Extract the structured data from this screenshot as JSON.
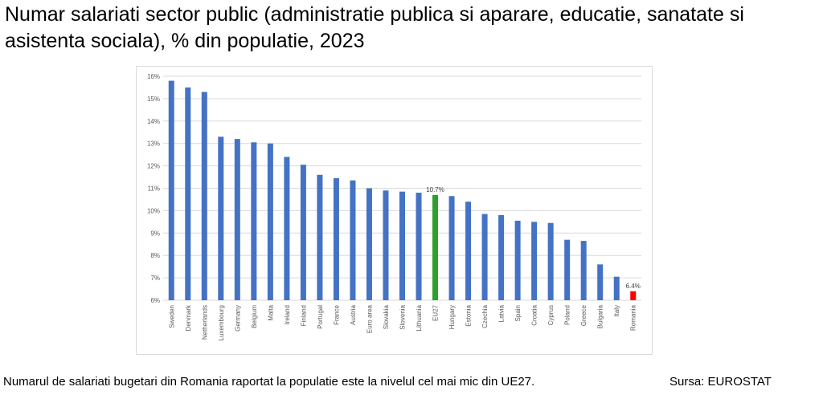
{
  "title": "Numar salariati sector public (administratie publica si aparare, educatie, sanatate si asistenta sociala), % din populatie, 2023",
  "footer": {
    "note": "Numarul de salariati bugetari din Romania raportat la populatie este la nivelul cel mai mic din UE27.",
    "source": "Sursa: EUROSTAT"
  },
  "colors": {
    "default": "#4472C4",
    "eu27": "#2CA02C",
    "romania": "#FF0000"
  },
  "chart_data": {
    "type": "bar",
    "title": "",
    "xlabel": "",
    "ylabel": "",
    "ylim": [
      6,
      16
    ],
    "yticks": [
      "6%",
      "7%",
      "8%",
      "9%",
      "10%",
      "11%",
      "12%",
      "13%",
      "14%",
      "15%",
      "16%"
    ],
    "grid": true,
    "legend": "none",
    "categories": [
      "Sweden",
      "Denmark",
      "Netherlands",
      "Luxembourg",
      "Germany",
      "Belgium",
      "Malta",
      "Ireland",
      "Finland",
      "Portugal",
      "France",
      "Austria",
      "Euro area",
      "Slovakia",
      "Slovenia",
      "Lithuania",
      "EU27",
      "Hungary",
      "Estonia",
      "Czechia",
      "Latvia",
      "Spain",
      "Croatia",
      "Cyprus",
      "Poland",
      "Greece",
      "Bulgaria",
      "Italy",
      "Romania"
    ],
    "values": [
      15.8,
      15.5,
      15.3,
      13.3,
      13.2,
      13.05,
      13.0,
      12.4,
      12.05,
      11.6,
      11.45,
      11.35,
      11.0,
      10.9,
      10.85,
      10.8,
      10.7,
      10.65,
      10.4,
      9.85,
      9.8,
      9.55,
      9.5,
      9.45,
      8.7,
      8.65,
      7.6,
      7.05,
      6.4
    ],
    "data_labels": [
      {
        "category": "EU27",
        "text": "10.7%"
      },
      {
        "category": "Romania",
        "text": "6.4%"
      }
    ]
  }
}
